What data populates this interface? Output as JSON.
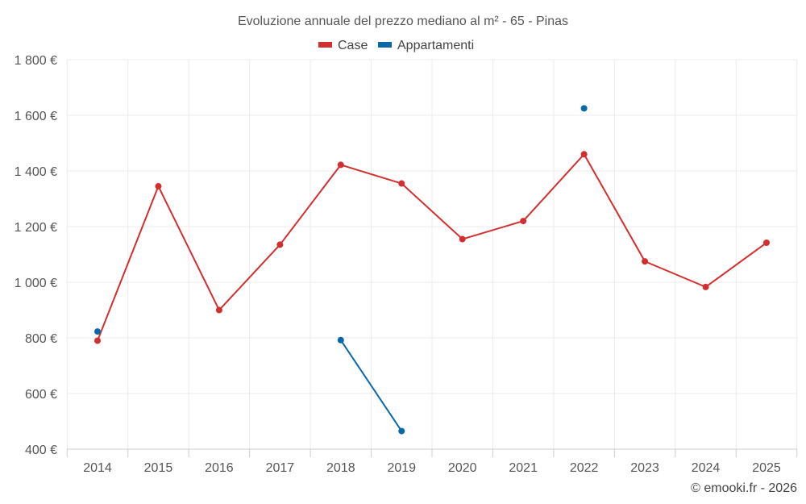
{
  "chart_data": {
    "type": "line",
    "title": "Evoluzione annuale del prezzo mediano al m² - 65 - Pinas",
    "categories": [
      "2014",
      "2015",
      "2016",
      "2017",
      "2018",
      "2019",
      "2020",
      "2021",
      "2022",
      "2023",
      "2024",
      "2025"
    ],
    "series": [
      {
        "name": "Case",
        "color": "#d32f2f",
        "values": [
          790,
          1345,
          900,
          1135,
          1422,
          1355,
          1155,
          1220,
          1460,
          1075,
          983,
          1142
        ]
      },
      {
        "name": "Appartamenti",
        "color": "#0868a8",
        "values": [
          823,
          null,
          null,
          null,
          792,
          465,
          null,
          null,
          1625,
          null,
          null,
          null
        ]
      }
    ],
    "ylim": [
      400,
      1800
    ],
    "yticks": [
      400,
      600,
      800,
      1000,
      1200,
      1400,
      1600,
      1800
    ],
    "ytick_labels": [
      "400 €",
      "600 €",
      "800 €",
      "1 000 €",
      "1 200 €",
      "1 400 €",
      "1 600 €",
      "1 800 €"
    ],
    "xlabel": "",
    "ylabel": "",
    "grid": true,
    "legend_position": "top-center"
  },
  "credit": "© emooki.fr - 2026"
}
